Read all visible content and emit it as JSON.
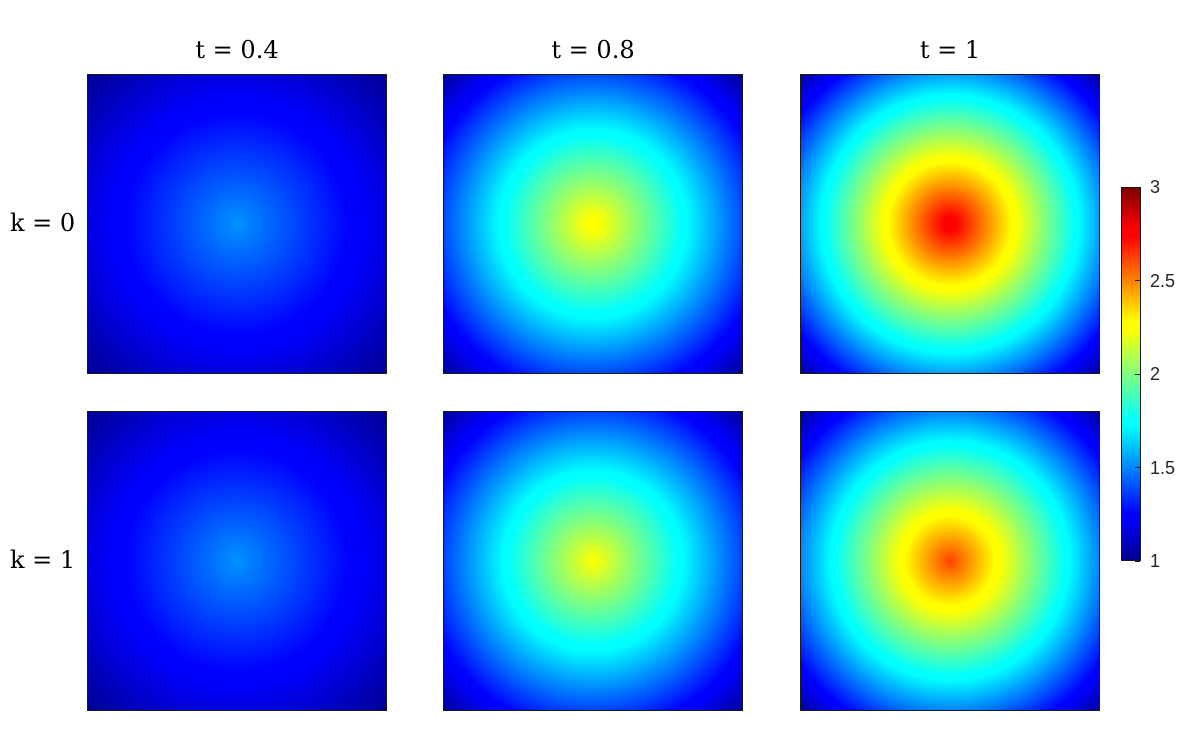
{
  "chart_data": {
    "type": "heatmap",
    "layout": "2x3 grid of square surface plots with shared colorbar",
    "colormap": "jet",
    "col_titles": [
      "t = 0.4",
      "t = 0.8",
      "t = 1"
    ],
    "row_labels": [
      "k = 0",
      "k = 1"
    ],
    "colorbar": {
      "range": [
        1,
        3
      ],
      "ticks": [
        1,
        1.5,
        2,
        2.5,
        3
      ],
      "tick_labels": [
        "1",
        "1.5",
        "2",
        "2.5",
        "3"
      ],
      "placement": "right"
    },
    "panels": [
      {
        "row": 0,
        "col": 0,
        "t": 0.4,
        "k": 0,
        "min": 1.0,
        "peak": 1.52
      },
      {
        "row": 0,
        "col": 1,
        "t": 0.8,
        "k": 0,
        "min": 1.0,
        "peak": 2.28
      },
      {
        "row": 0,
        "col": 2,
        "t": 1,
        "k": 0,
        "min": 1.0,
        "peak": 2.8
      },
      {
        "row": 1,
        "col": 0,
        "t": 0.4,
        "k": 1,
        "min": 1.0,
        "peak": 1.52
      },
      {
        "row": 1,
        "col": 1,
        "t": 0.8,
        "k": 1,
        "min": 1.0,
        "peak": 2.24
      },
      {
        "row": 1,
        "col": 2,
        "t": 1,
        "k": 1,
        "min": 1.0,
        "peak": 2.62
      }
    ]
  }
}
